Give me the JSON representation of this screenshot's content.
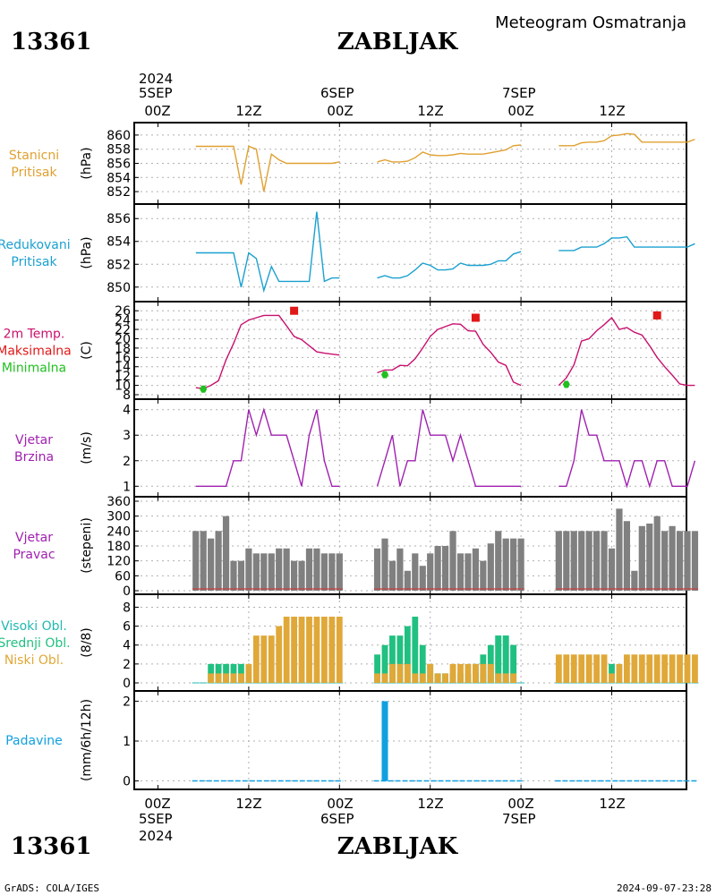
{
  "header": {
    "title_right": "Meteogram Osmatranja",
    "station_id": "13361",
    "station_name": "ZABLJAK"
  },
  "top_axis": {
    "year": "2024",
    "day_labels": [
      "5SEP",
      "6SEP",
      "7SEP"
    ],
    "tick_labels": [
      "00Z",
      "12Z",
      "00Z",
      "12Z",
      "00Z",
      "12Z"
    ]
  },
  "bottom_axis": {
    "tick_labels": [
      "00Z",
      "12Z",
      "00Z",
      "12Z",
      "00Z",
      "12Z"
    ],
    "day_labels": [
      "5SEP",
      "6SEP",
      "7SEP"
    ],
    "year": "2024"
  },
  "footer": {
    "credit": "GrADS: COLA/IGES",
    "timestamp": "2024-09-07-23:28"
  },
  "colors": {
    "pressure": "#e0a030",
    "reduced": "#1aa0d0",
    "temp": "#c8106e",
    "tmax": "#e01818",
    "tmin": "#20c020",
    "wind": "#a020b0",
    "dir": "#808080",
    "dir_line": "#c84040",
    "cloud_high": "#20b8b0",
    "cloud_mid": "#20c080",
    "cloud_low": "#e0a838",
    "precip": "#10a0e0",
    "grid": "#b0b0b0"
  },
  "chart_data": [
    {
      "type": "line",
      "panel": "station_pressure",
      "label_lines": [
        "Stanicni",
        "Pritisak"
      ],
      "ylabel": "(hPa)",
      "ylim": [
        851,
        861
      ],
      "yticks": [
        852,
        854,
        856,
        858,
        860
      ],
      "x_unit": "hours since 5SEP 00Z",
      "x": [
        5,
        6,
        7,
        8,
        9,
        10,
        11,
        12,
        13,
        14,
        15,
        16,
        17,
        18,
        19,
        20,
        21,
        22,
        23,
        24,
        29,
        30,
        31,
        32,
        33,
        34,
        35,
        36,
        37,
        38,
        39,
        40,
        41,
        42,
        43,
        44,
        45,
        46,
        47,
        48,
        53,
        54,
        55,
        56,
        57,
        58,
        59,
        60,
        61,
        62,
        63,
        64,
        65,
        66,
        67,
        68,
        69,
        70,
        71
      ],
      "y": [
        858.4,
        858.4,
        858.4,
        858.4,
        858.4,
        858.4,
        853,
        858.4,
        858,
        852,
        857.3,
        856.5,
        856,
        856,
        856,
        856,
        856,
        856,
        856,
        856.2,
        856.2,
        856.5,
        856.2,
        856.2,
        856.3,
        856.8,
        857.6,
        857.2,
        857.1,
        857.1,
        857.2,
        857.4,
        857.3,
        857.3,
        857.3,
        857.5,
        857.7,
        857.9,
        858.5,
        858.6,
        858.5,
        858.5,
        858.5,
        858.9,
        859,
        859,
        859.2,
        859.9,
        860,
        860.2,
        860.1,
        859,
        859,
        859,
        859,
        859,
        859,
        859,
        859.4
      ]
    },
    {
      "type": "line",
      "panel": "reduced_pressure",
      "label_lines": [
        "Redukovani",
        "Pritisak"
      ],
      "ylabel": "(hPa)",
      "ylim": [
        849.2,
        856.8
      ],
      "yticks": [
        850,
        852,
        854,
        856
      ],
      "x_unit": "hours since 5SEP 00Z",
      "x": [
        5,
        6,
        7,
        8,
        9,
        10,
        11,
        12,
        13,
        14,
        15,
        16,
        17,
        18,
        19,
        20,
        21,
        22,
        23,
        24,
        29,
        30,
        31,
        32,
        33,
        34,
        35,
        36,
        37,
        38,
        39,
        40,
        41,
        42,
        43,
        44,
        45,
        46,
        47,
        48,
        53,
        54,
        55,
        56,
        57,
        58,
        59,
        60,
        61,
        62,
        63,
        64,
        65,
        66,
        67,
        68,
        69,
        70,
        71
      ],
      "y": [
        853,
        853,
        853,
        853,
        853,
        853,
        850,
        853,
        852.5,
        849.7,
        851.8,
        850.5,
        850.5,
        850.5,
        850.5,
        850.5,
        856.6,
        850.5,
        850.8,
        850.8,
        850.8,
        851,
        850.8,
        850.8,
        851,
        851.5,
        852.1,
        851.9,
        851.5,
        851.5,
        851.6,
        852.1,
        851.9,
        851.9,
        851.9,
        852,
        852.3,
        852.3,
        852.9,
        853.1,
        853.2,
        853.2,
        853.2,
        853.5,
        853.5,
        853.5,
        853.8,
        854.3,
        854.3,
        854.4,
        853.5,
        853.5,
        853.5,
        853.5,
        853.5,
        853.5,
        853.5,
        853.5,
        853.8
      ]
    },
    {
      "type": "line",
      "panel": "temperature",
      "label_lines": [
        "2m Temp.",
        "Maksimalna",
        "Minimalna"
      ],
      "ylabel": "(C)",
      "ylim": [
        8,
        27
      ],
      "yticks": [
        8,
        10,
        12,
        14,
        16,
        18,
        20,
        22,
        24,
        26
      ],
      "x_unit": "hours since 5SEP 00Z",
      "x": [
        5,
        6,
        7,
        8,
        9,
        10,
        11,
        12,
        13,
        14,
        15,
        16,
        17,
        18,
        19,
        20,
        21,
        22,
        23,
        24,
        29,
        30,
        31,
        32,
        33,
        34,
        35,
        36,
        37,
        38,
        39,
        40,
        41,
        42,
        43,
        44,
        45,
        46,
        47,
        48,
        53,
        54,
        55,
        56,
        57,
        58,
        59,
        60,
        61,
        62,
        63,
        64,
        65,
        66,
        67,
        68,
        69,
        70,
        71
      ],
      "y": [
        9.5,
        9.3,
        10,
        11,
        15.5,
        19,
        23,
        24,
        24.5,
        25,
        25,
        25,
        22.8,
        20.5,
        19.8,
        18.5,
        17.2,
        16.9,
        16.7,
        16.5,
        12.7,
        13.3,
        13.3,
        14.3,
        14.2,
        15.7,
        18,
        20.5,
        22,
        22.6,
        23.2,
        23.1,
        21.7,
        21.6,
        18.8,
        17.1,
        15,
        14.3,
        10.7,
        10,
        10,
        11.6,
        14.4,
        19.5,
        20,
        21.7,
        23,
        24.5,
        22,
        22.4,
        21.4,
        20.8,
        18.5,
        16,
        14,
        12.2,
        10.3,
        10,
        10
      ],
      "max_points": [
        {
          "x": 18,
          "y": 26
        },
        {
          "x": 42,
          "y": 24.5
        },
        {
          "x": 66,
          "y": 25
        }
      ],
      "min_points": [
        {
          "x": 6,
          "y": 9.2
        },
        {
          "x": 30,
          "y": 12.3
        },
        {
          "x": 54,
          "y": 10.2
        }
      ]
    },
    {
      "type": "line",
      "panel": "wind_speed",
      "label_lines": [
        "Vjetar",
        "Brzina"
      ],
      "ylabel": "(m/s)",
      "ylim": [
        0.8,
        4.2
      ],
      "yticks": [
        1,
        2,
        3,
        4
      ],
      "x_unit": "hours since 5SEP 00Z",
      "x": [
        5,
        6,
        7,
        8,
        9,
        10,
        11,
        12,
        13,
        14,
        15,
        16,
        17,
        18,
        19,
        20,
        21,
        22,
        23,
        24,
        29,
        30,
        31,
        32,
        33,
        34,
        35,
        36,
        37,
        38,
        39,
        40,
        41,
        42,
        43,
        44,
        45,
        46,
        47,
        48,
        53,
        54,
        55,
        56,
        57,
        58,
        59,
        60,
        61,
        62,
        63,
        64,
        65,
        66,
        67,
        68,
        69,
        70,
        71
      ],
      "y": [
        1,
        1,
        1,
        1,
        1,
        2,
        2,
        4,
        3,
        4,
        3,
        3,
        3,
        2,
        1,
        3,
        4,
        2,
        1,
        1,
        1,
        2,
        3,
        1,
        2,
        2,
        4,
        3,
        3,
        3,
        2,
        3,
        2,
        1,
        1,
        1,
        1,
        1,
        1,
        1,
        1,
        1,
        2,
        4,
        3,
        3,
        2,
        2,
        2,
        1,
        2,
        2,
        1,
        2,
        2,
        1,
        1,
        1,
        2
      ]
    },
    {
      "type": "bar",
      "panel": "wind_direction",
      "label_lines": [
        "Vjetar",
        "Pravac"
      ],
      "ylabel": "(stepeni)",
      "ylim": [
        0,
        360
      ],
      "yticks": [
        0,
        60,
        120,
        180,
        240,
        300,
        360
      ],
      "x_unit": "hours since 5SEP 00Z",
      "x": [
        5,
        6,
        7,
        8,
        9,
        10,
        11,
        12,
        13,
        14,
        15,
        16,
        17,
        18,
        19,
        20,
        21,
        22,
        23,
        24,
        29,
        30,
        31,
        32,
        33,
        34,
        35,
        36,
        37,
        38,
        39,
        40,
        41,
        42,
        43,
        44,
        45,
        46,
        47,
        48,
        53,
        54,
        55,
        56,
        57,
        58,
        59,
        60,
        61,
        62,
        63,
        64,
        65,
        66,
        67,
        68,
        69,
        70,
        71
      ],
      "values": [
        240,
        240,
        210,
        240,
        300,
        120,
        120,
        170,
        150,
        150,
        150,
        170,
        170,
        120,
        120,
        170,
        170,
        150,
        150,
        150,
        170,
        210,
        120,
        170,
        80,
        150,
        100,
        150,
        180,
        180,
        240,
        150,
        150,
        170,
        120,
        190,
        240,
        210,
        210,
        210,
        240,
        240,
        240,
        240,
        240,
        240,
        240,
        170,
        330,
        280,
        80,
        260,
        270,
        300,
        240,
        260,
        240,
        240,
        240
      ]
    },
    {
      "type": "bar",
      "panel": "clouds",
      "label_lines": [
        "Visoki Obl.",
        "Srednji Obl.",
        "Niski Obl."
      ],
      "ylabel": "(8/8)",
      "ylim": [
        0,
        8.8
      ],
      "yticks": [
        0,
        2,
        4,
        6,
        8
      ],
      "x_unit": "hours since 5SEP 00Z",
      "x": [
        5,
        6,
        7,
        8,
        9,
        10,
        11,
        12,
        13,
        14,
        15,
        16,
        17,
        18,
        19,
        20,
        21,
        22,
        23,
        24,
        29,
        30,
        31,
        32,
        33,
        34,
        35,
        36,
        37,
        38,
        39,
        40,
        41,
        42,
        43,
        44,
        45,
        46,
        47,
        48,
        53,
        54,
        55,
        56,
        57,
        58,
        59,
        60,
        61,
        62,
        63,
        64,
        65,
        66,
        67,
        68,
        69,
        70,
        71
      ],
      "series": [
        {
          "name": "Visoki Obl.",
          "values": [
            0,
            0,
            0,
            0,
            0,
            0,
            0,
            0,
            0,
            0,
            0,
            0,
            0,
            0,
            0,
            0,
            0,
            0,
            0,
            0,
            0,
            0,
            0,
            0,
            0,
            0,
            0,
            0,
            1,
            1,
            1,
            1,
            1,
            1,
            1,
            2,
            5,
            5,
            4,
            0,
            0,
            0,
            0,
            0,
            0,
            0,
            0,
            0,
            0,
            0,
            0,
            0,
            0,
            0,
            0,
            0,
            0,
            0,
            0
          ]
        },
        {
          "name": "Srednji Obl.",
          "values": [
            0,
            0,
            2,
            2,
            2,
            2,
            2,
            0,
            0,
            0,
            0,
            0,
            0,
            0,
            0,
            0,
            0,
            0,
            0,
            0,
            3,
            4,
            5,
            5,
            6,
            7,
            4,
            2,
            1,
            1,
            1,
            1,
            1,
            2,
            3,
            4,
            5,
            5,
            4,
            0,
            0,
            0,
            0,
            0,
            0,
            0,
            0,
            2,
            0,
            0,
            0,
            0,
            0,
            0,
            0,
            0,
            0,
            0,
            0
          ]
        },
        {
          "name": "Niski Obl.",
          "values": [
            0,
            0,
            1,
            1,
            1,
            1,
            1,
            2,
            5,
            5,
            5,
            6,
            7,
            7,
            7,
            7,
            7,
            7,
            7,
            7,
            1,
            1,
            2,
            2,
            2,
            1,
            1,
            2,
            1,
            1,
            2,
            2,
            2,
            2,
            2,
            2,
            1,
            1,
            1,
            0,
            3,
            3,
            3,
            3,
            3,
            3,
            3,
            1,
            2,
            3,
            3,
            3,
            3,
            3,
            3,
            3,
            3,
            3,
            3
          ]
        }
      ]
    },
    {
      "type": "bar",
      "panel": "precipitation",
      "label_lines": [
        "Padavine"
      ],
      "ylabel": "(mm/6h/12h)",
      "ylim": [
        -0.1,
        2.1
      ],
      "yticks": [
        0,
        1,
        2
      ],
      "x_unit": "hours since 5SEP 00Z",
      "bars": [
        {
          "x": 30,
          "value": 2
        }
      ],
      "baseline_segments": [
        [
          5,
          24
        ],
        [
          29,
          48
        ],
        [
          53,
          71
        ]
      ]
    }
  ]
}
